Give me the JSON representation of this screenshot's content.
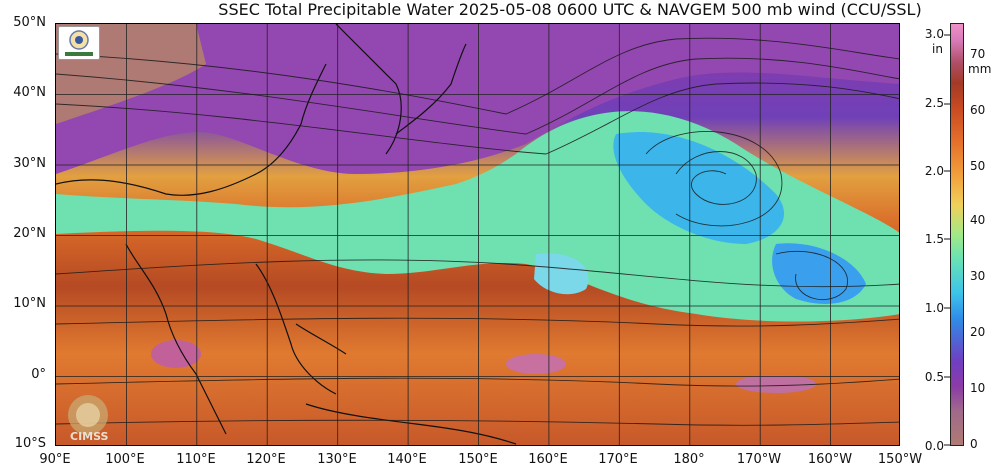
{
  "title": "SSEC Total Precipitable Water  2025-05-08 0600 UTC & NAVGEM 500 mb wind (CCU/SSL)",
  "map": {
    "lat_labels": [
      "50°N",
      "40°N",
      "30°N",
      "20°N",
      "10°N",
      "0°",
      "10°S"
    ],
    "lon_labels": [
      "90°E",
      "100°E",
      "110°E",
      "120°E",
      "130°E",
      "140°E",
      "150°E",
      "160°E",
      "170°E",
      "180°",
      "170°W",
      "160°W",
      "150°W"
    ],
    "lat_range": [
      -10,
      50
    ],
    "lon_range": [
      90,
      210
    ]
  },
  "colorbar": {
    "inches_unit": "in",
    "inches_ticks": [
      "3.0",
      "2.5",
      "2.0",
      "1.5",
      "1.0",
      "0.5",
      "0.0"
    ],
    "mm_unit": "mm",
    "mm_ticks": [
      "70",
      "60",
      "50",
      "40",
      "30",
      "20",
      "10",
      "0"
    ],
    "palette": [
      "#b07a74",
      "#8c3aa8",
      "#2f8ce8",
      "#67e2b6",
      "#f0d05a",
      "#e5702a",
      "#a33a26",
      "#f090c8"
    ]
  },
  "logos": {
    "top_left": "SSEC",
    "bottom_left": "CIMSS"
  }
}
